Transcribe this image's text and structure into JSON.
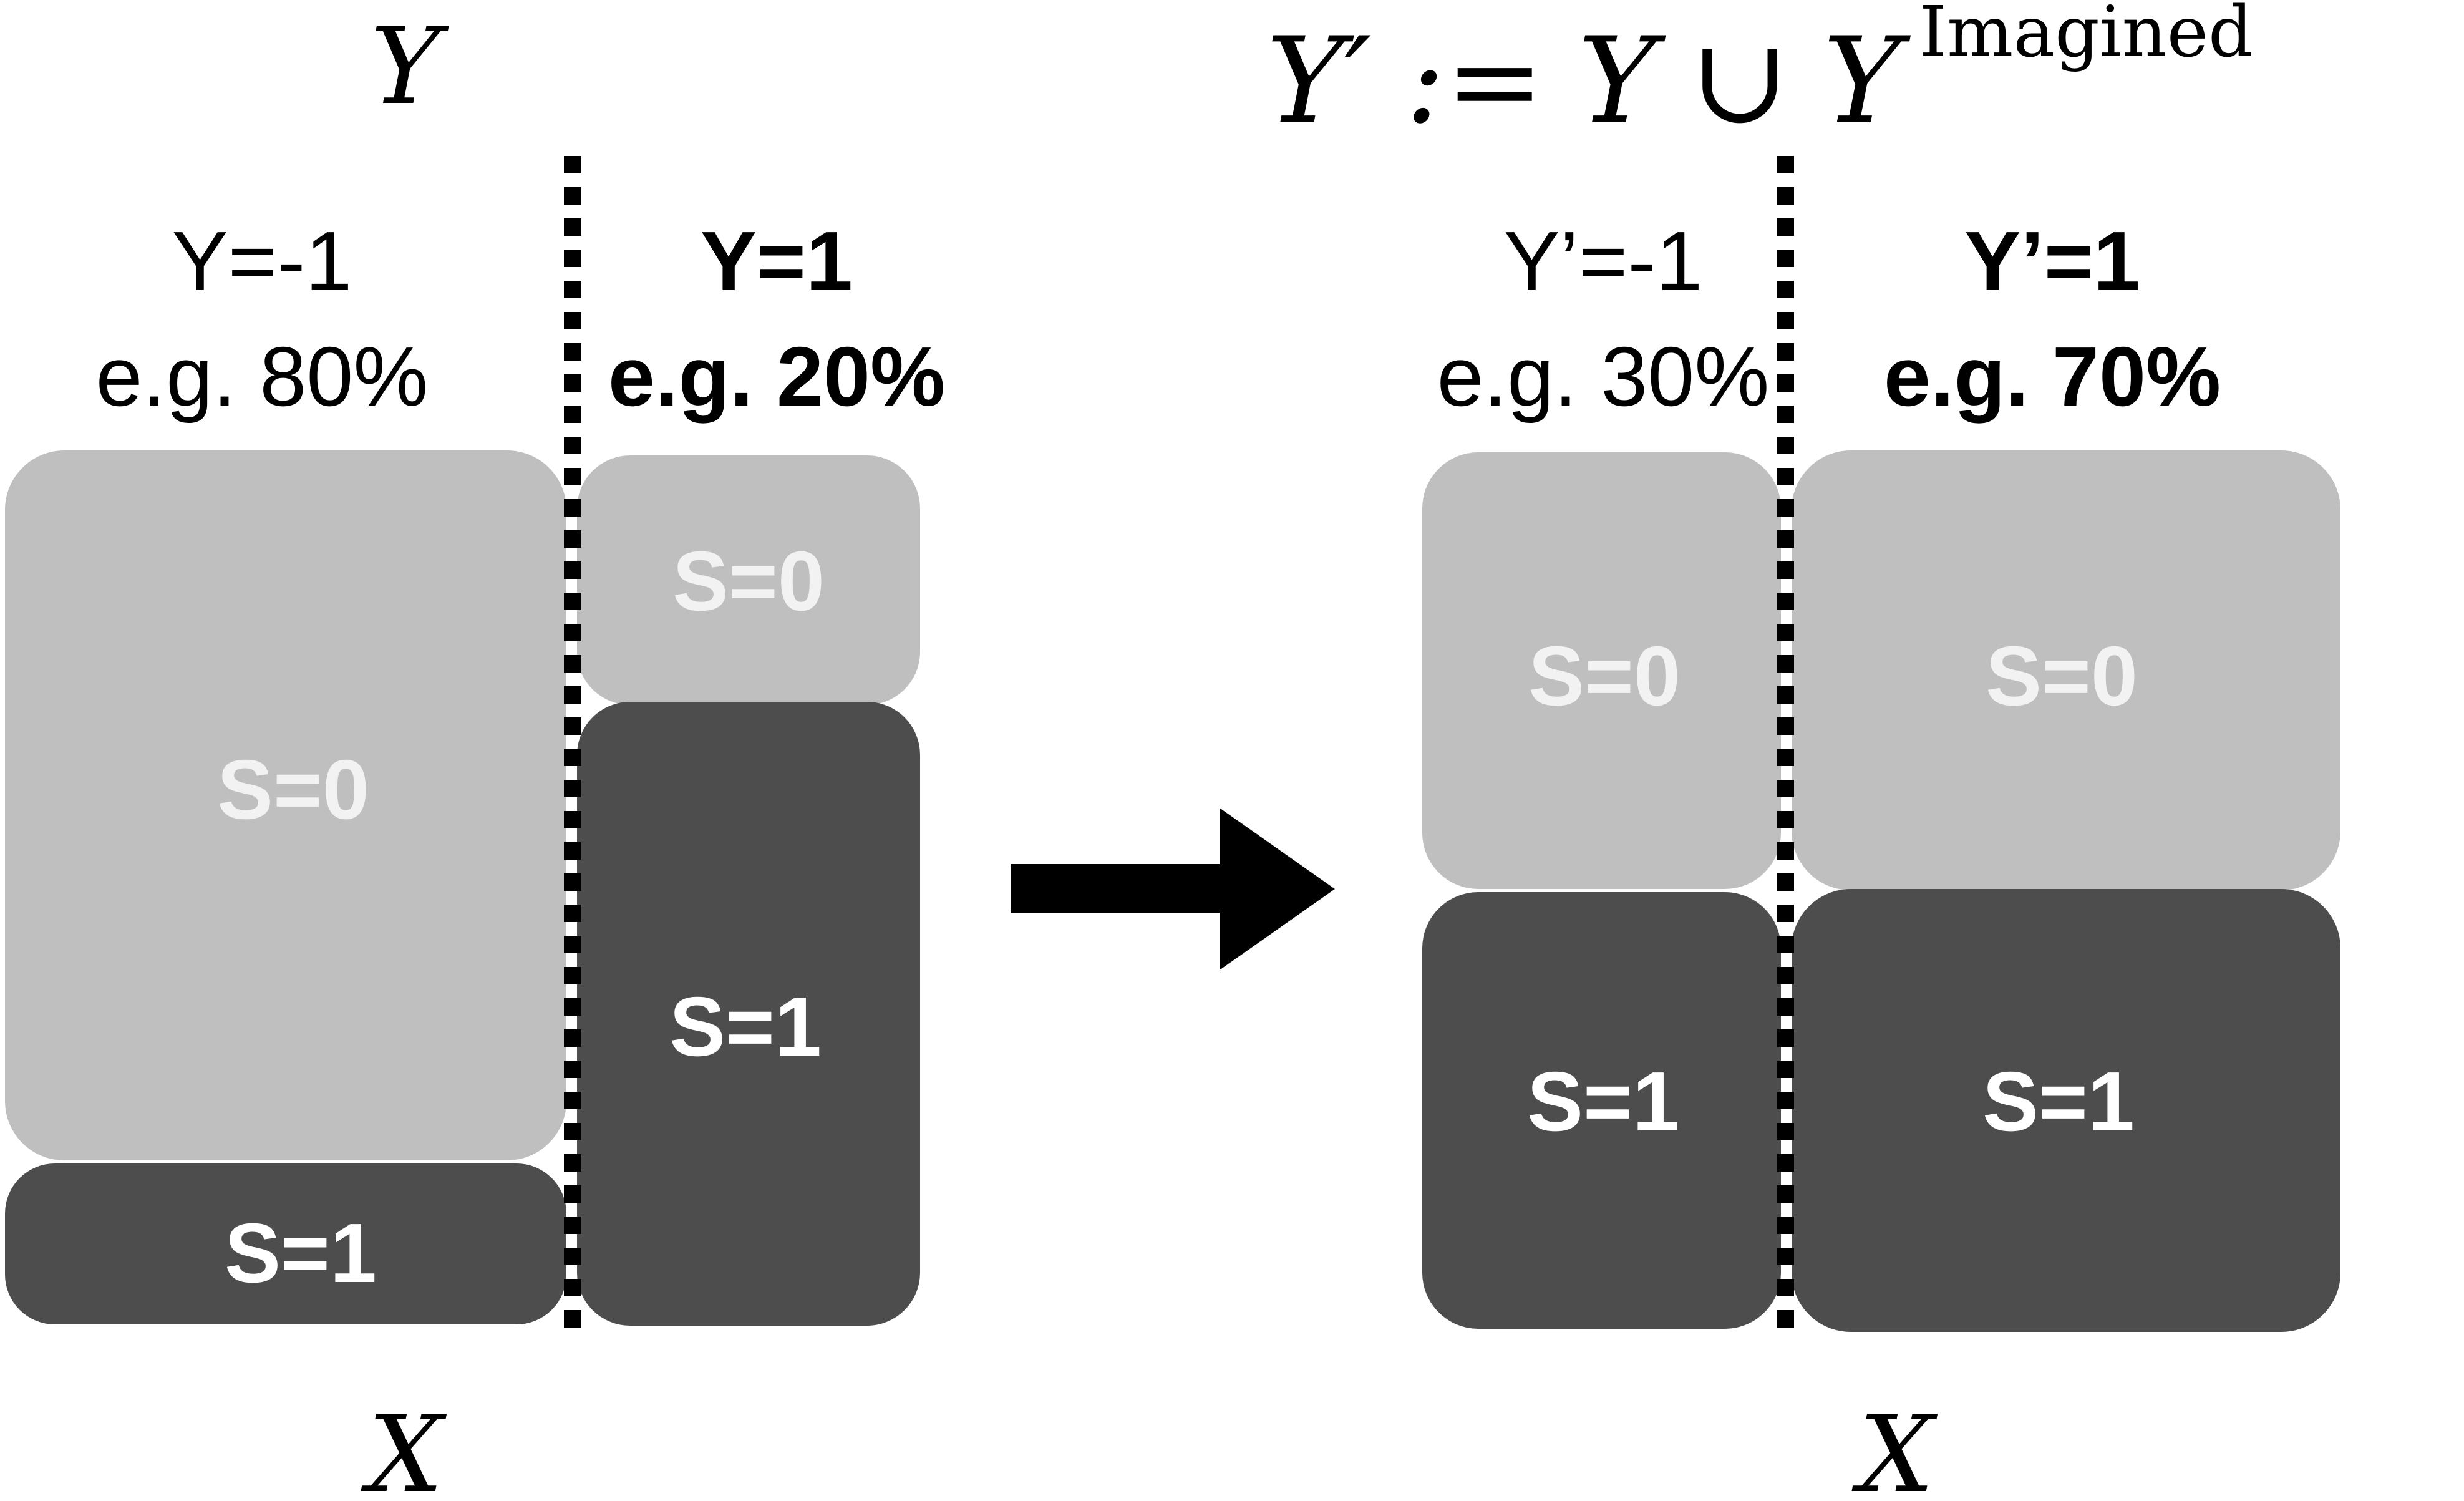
{
  "left_panel": {
    "axis_y_label": "Y",
    "axis_x_label": "X",
    "group_neg": {
      "label": "Y=-1",
      "share": "e.g. 80%"
    },
    "group_pos": {
      "label": "Y=1",
      "share": "e.g. 20%"
    },
    "blocks": {
      "neg_s0": "S=0",
      "neg_s1": "S=1",
      "pos_s0": "S=0",
      "pos_s1": "S=1"
    }
  },
  "right_panel": {
    "formula": {
      "lhs": "Y′",
      "op": ":=",
      "rhs_a": "Y",
      "union": "∪",
      "rhs_b": "Y",
      "superscript": "Imagined"
    },
    "axis_x_label": "X",
    "group_neg": {
      "label": "Y’=-1",
      "share": "e.g. 30%"
    },
    "group_pos": {
      "label": "Y’=1",
      "share": "e.g. 70%"
    },
    "blocks": {
      "neg_s0": "S=0",
      "neg_s1": "S=1",
      "pos_s0": "S=0",
      "pos_s1": "S=1"
    }
  },
  "colors": {
    "light_block": "#bfbfbf",
    "dark_block": "#4d4d4d",
    "light_block_text": "#f2f2f2",
    "dark_block_text": "#ffffff",
    "ink": "#000000"
  }
}
